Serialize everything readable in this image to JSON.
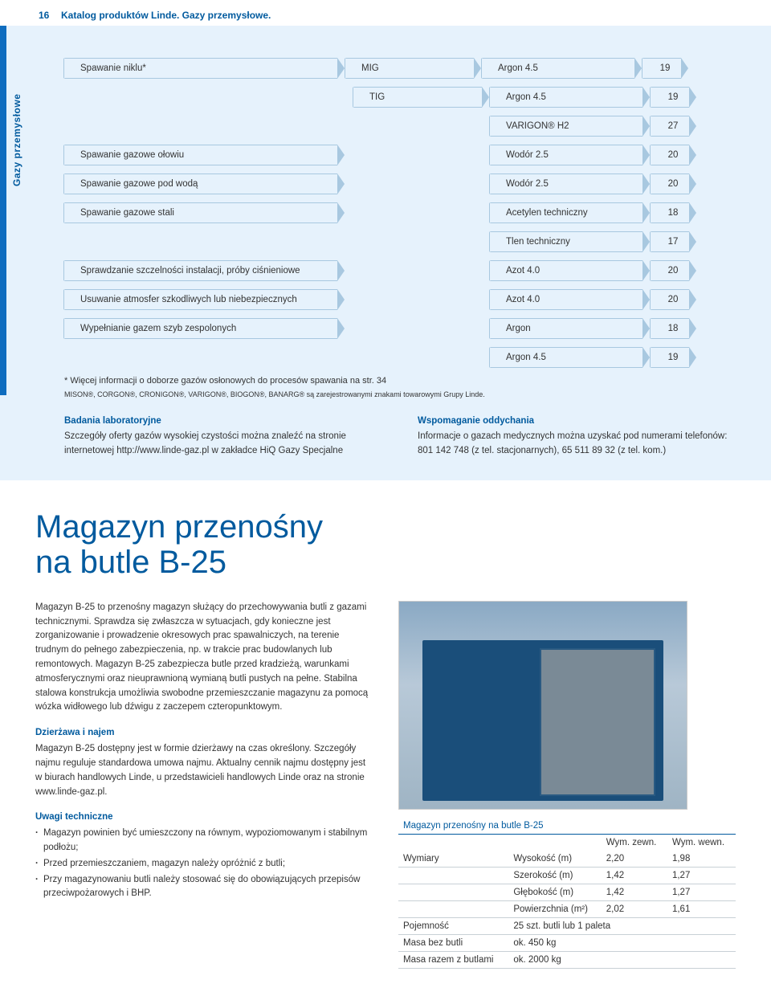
{
  "header": {
    "page_no": "16",
    "title": "Katalog produktów Linde. Gazy przemysłowe."
  },
  "side_label": "Gazy przemysłowe",
  "rows": [
    {
      "proc": "Spawanie niklu*",
      "met": "MIG",
      "gas": "Argon 4.5",
      "pg": "19"
    },
    {
      "indent": 1,
      "met": "TIG",
      "gas": "Argon 4.5",
      "pg": "19"
    },
    {
      "indent": 2,
      "gas": "VARIGON® H2",
      "pg": "27"
    },
    {
      "proc": "Spawanie gazowe ołowiu",
      "gas": "Wodór 2.5",
      "pg": "20"
    },
    {
      "proc": "Spawanie gazowe pod wodą",
      "gas": "Wodór 2.5",
      "pg": "20"
    },
    {
      "proc": "Spawanie gazowe stali",
      "gas": "Acetylen techniczny",
      "pg": "18"
    },
    {
      "indent": 2,
      "gas": "Tlen techniczny",
      "pg": "17"
    },
    {
      "proc": "Sprawdzanie szczelności instalacji, próby ciśnieniowe",
      "gas": "Azot 4.0",
      "pg": "20"
    },
    {
      "proc": "Usuwanie atmosfer szkodliwych lub niebezpiecznych",
      "gas": "Azot 4.0",
      "pg": "20"
    },
    {
      "proc": "Wypełnianie gazem szyb zespolonych",
      "gas": "Argon",
      "pg": "18"
    },
    {
      "indent": 2,
      "gas": "Argon 4.5",
      "pg": "19"
    }
  ],
  "footnote": "* Więcej informacji o doborze gazów osłonowych do procesów spawania na str. 34",
  "small_note": "MISON®, CORGON®, CRONIGON®, VARIGON®, BIOGON®, BANARG® są zarejestrowanymi znakami towarowymi Grupy Linde.",
  "blurbs": {
    "left_hd": "Badania laboratoryjne",
    "left_txt": "Szczegóły oferty gazów wysokiej czystości można znaleźć na stronie internetowej http://www.linde-gaz.pl w zakładce HiQ Gazy Specjalne",
    "right_hd": "Wspomaganie oddychania",
    "right_txt": "Informacje o gazach medycznych można uzyskać pod numerami telefonów: 801 142 748 (z tel. stacjonarnych), 65 511 89 32 (z tel. kom.)"
  },
  "article": {
    "title1": "Magazyn przenośny",
    "title2": "na butle B-25",
    "p1": "Magazyn B-25 to przenośny magazyn służący do przechowywania butli z gazami technicznymi. Sprawdza się zwłaszcza w sytuacjach, gdy konieczne jest zorganizowanie i prowadzenie okresowych prac spawalniczych, na terenie trudnym do pełnego zabezpieczenia, np. w trakcie prac budowlanych lub remontowych. Magazyn B-25 zabezpiecza butle przed kradzieżą, warunkami atmosferycznymi oraz nieuprawnioną wymianą butli pustych na pełne. Stabilna stalowa konstrukcja umożliwia swobodne przemieszczanie magazynu za pomocą wózka widłowego lub dźwigu z zaczepem czteropunktowym.",
    "rent_hd": "Dzierżawa i najem",
    "rent_txt": "Magazyn B-25 dostępny jest w formie dzierżawy na czas określony. Szczegóły najmu reguluje standardowa umowa najmu. Aktualny cennik najmu dostępny jest w biurach handlowych Linde, u przedstawicieli handlowych Linde oraz na stronie www.linde-gaz.pl.",
    "tech_hd": "Uwagi techniczne",
    "b1": "Magazyn powinien być umieszczony na równym, wypoziomowanym i stabilnym podłożu;",
    "b2": "Przed przemieszczaniem, magazyn należy opróżnić z butli;",
    "b3": "Przy magazynowaniu butli należy stosować się do obowiązujących przepisów przeciwpożarowych i BHP."
  },
  "spec": {
    "caption": "Magazyn przenośny na butle B-25",
    "col_ext": "Wym. zewn.",
    "col_int": "Wym. wewn.",
    "dim_label": "Wymiary",
    "r_h": {
      "n": "Wysokość (m)",
      "e": "2,20",
      "i": "1,98"
    },
    "r_w": {
      "n": "Szerokość (m)",
      "e": "1,42",
      "i": "1,27"
    },
    "r_d": {
      "n": "Głębokość (m)",
      "e": "1,42",
      "i": "1,27"
    },
    "r_a": {
      "n": "Powierzchnia (m²)",
      "e": "2,02",
      "i": "1,61"
    },
    "cap_l": "Pojemność",
    "cap_v": "25 szt. butli lub 1 paleta",
    "mass_e_l": "Masa bez butli",
    "mass_e_v": "ok. 450 kg",
    "mass_f_l": "Masa razem z butlami",
    "mass_f_v": "ok. 2000 kg"
  }
}
